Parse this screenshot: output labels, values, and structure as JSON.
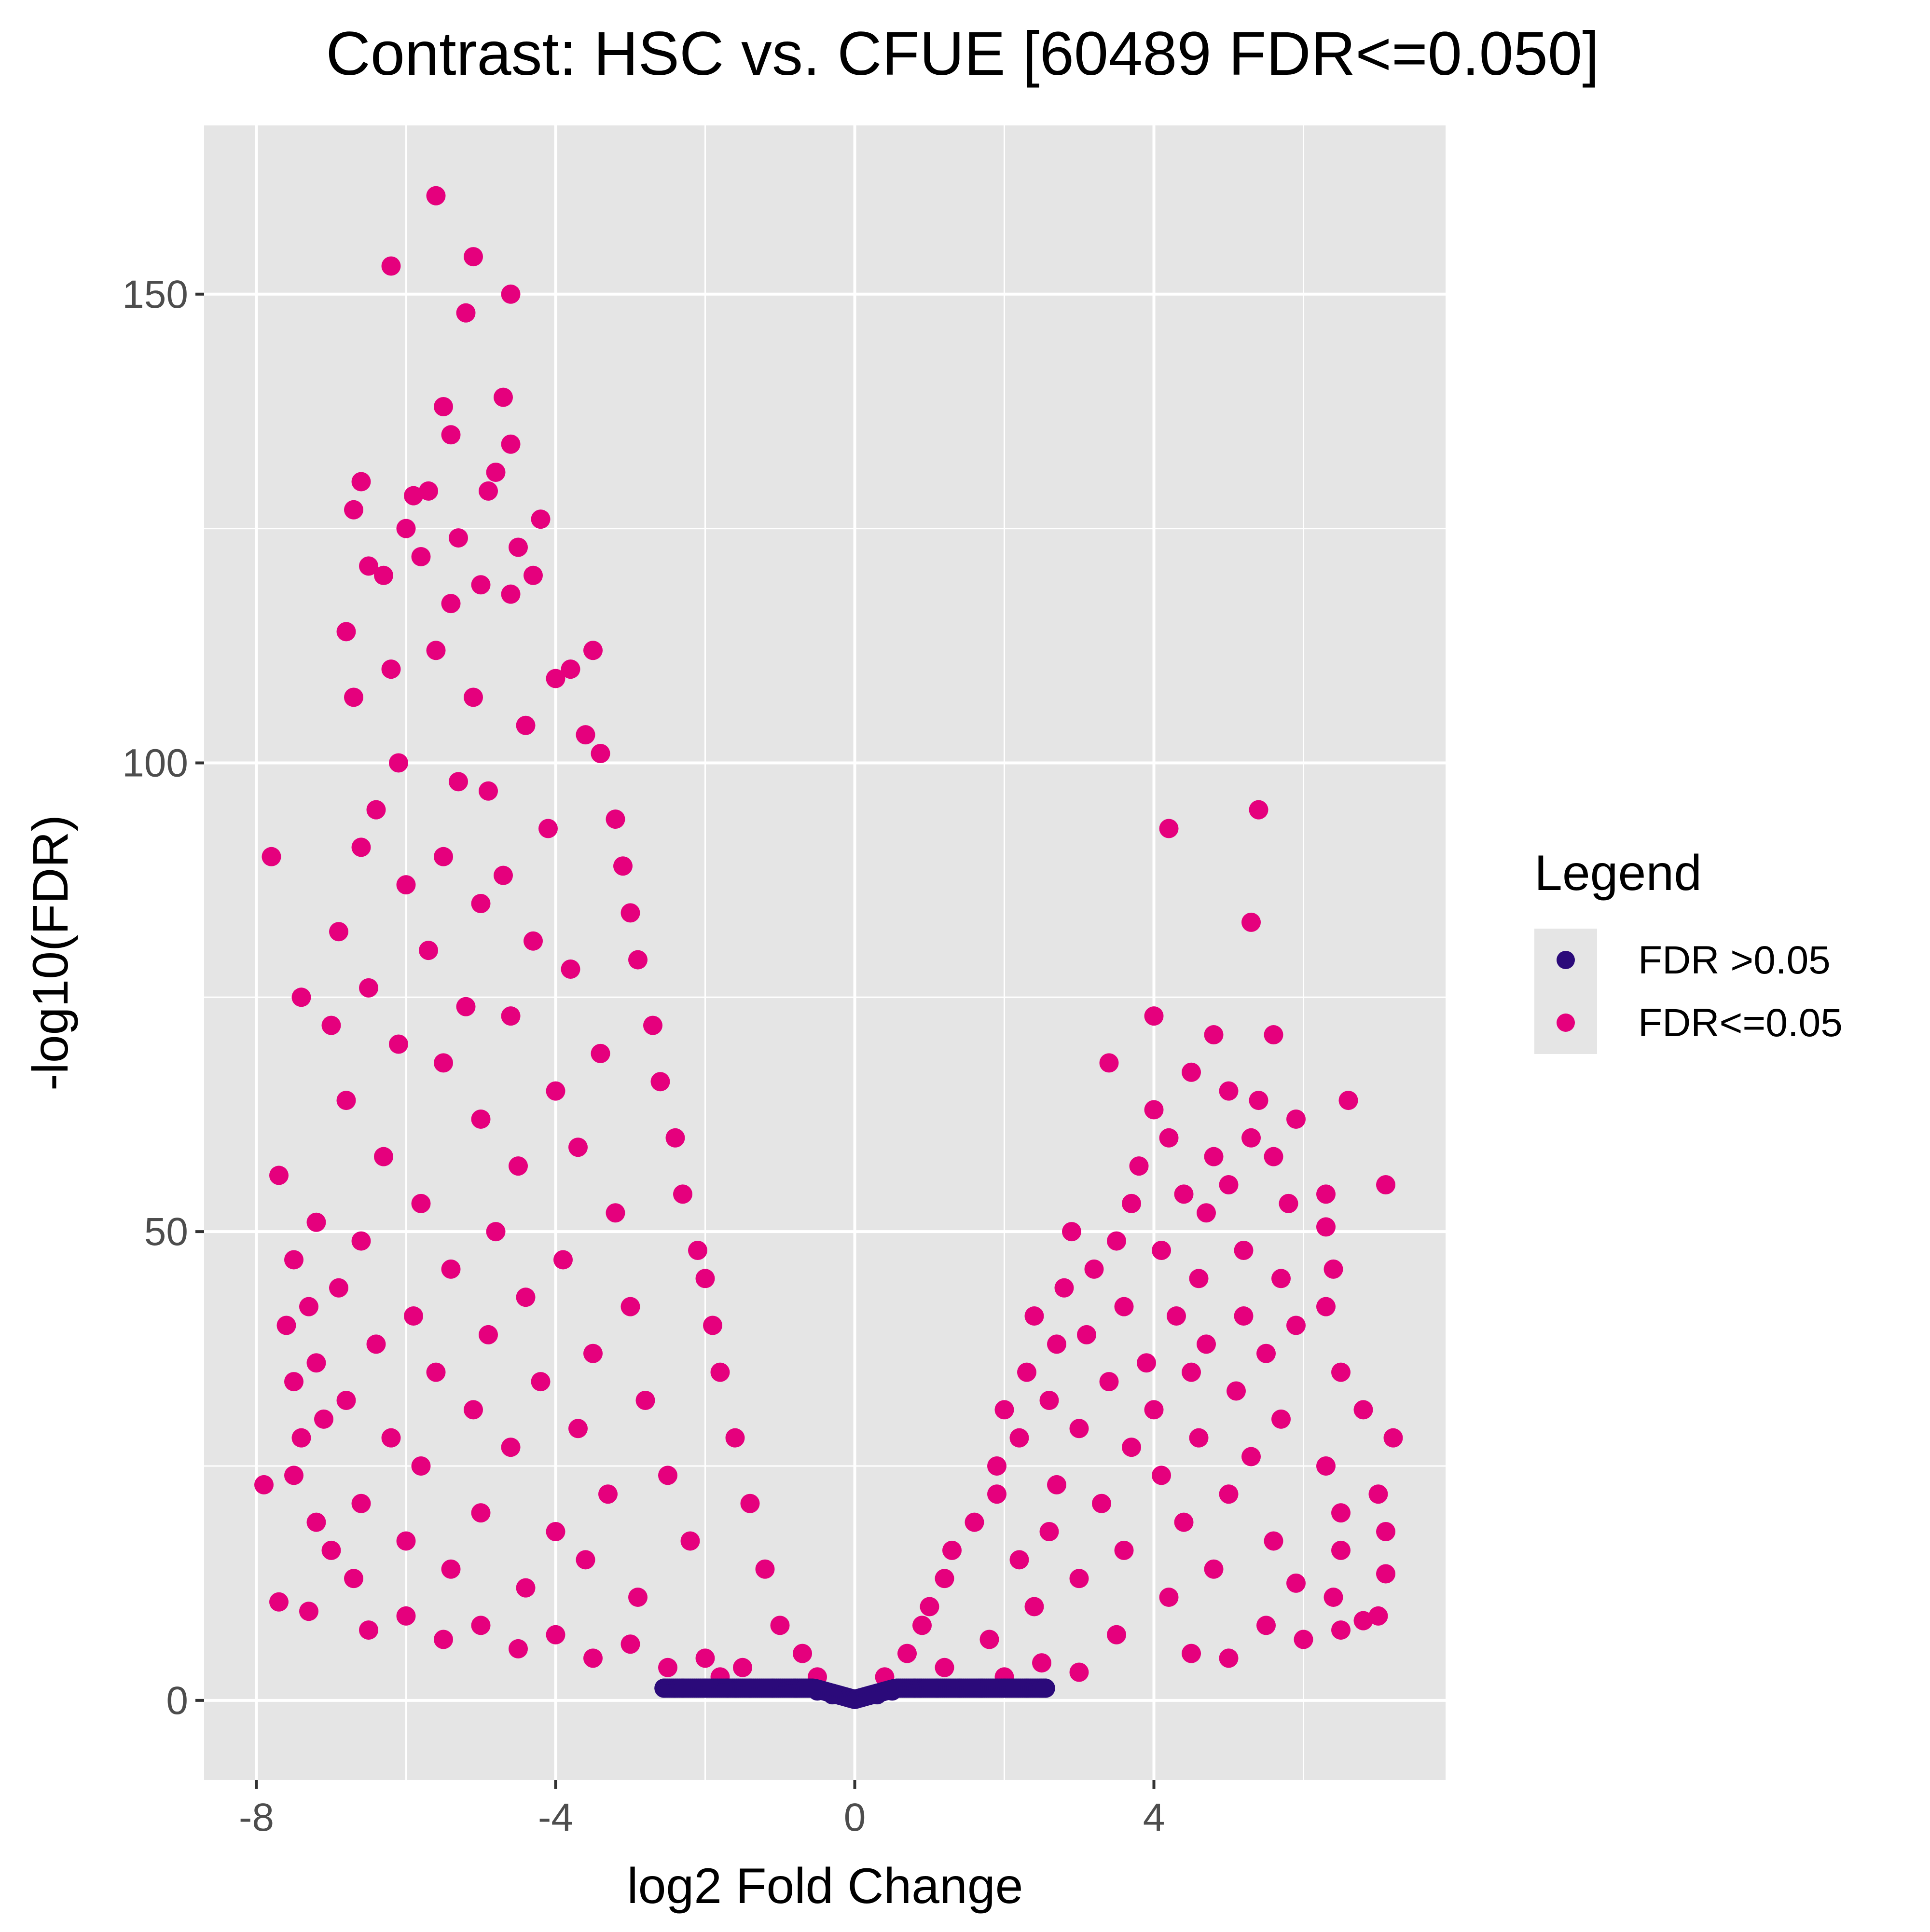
{
  "chart_data": {
    "type": "scatter",
    "title": "Contrast: HSC vs. CFUE  [60489 FDR<=0.050]",
    "xlabel": "log2 Fold Change",
    "ylabel": "-log10(FDR)",
    "xlim": [
      -8.7,
      7.9
    ],
    "ylim": [
      -8.5,
      168
    ],
    "x_ticks": [
      -8,
      -4,
      0,
      4
    ],
    "x_tick_labels": [
      "-8",
      "-4",
      "0",
      "4"
    ],
    "y_ticks": [
      0,
      50,
      100,
      150
    ],
    "y_tick_labels": [
      "0",
      "50",
      "100",
      "150"
    ],
    "grid": true,
    "panel_background": "#e5e5e5",
    "legend": {
      "title": "Legend",
      "placement": "right",
      "entries": [
        {
          "label": "FDR >0.05",
          "color": "#2b0a7a"
        },
        {
          "label": "FDR<=0.05",
          "color": "#e5007d"
        }
      ]
    },
    "series": [
      {
        "name": "FDR >0.05",
        "color": "#2b0a7a",
        "points": [
          [
            -2.55,
            1.3
          ],
          [
            -2.3,
            1.3
          ],
          [
            -2.0,
            1.3
          ],
          [
            -1.7,
            1.3
          ],
          [
            -1.4,
            1.3
          ],
          [
            -1.1,
            1.3
          ],
          [
            -0.8,
            1.3
          ],
          [
            -0.5,
            1.0
          ],
          [
            -0.3,
            0.6
          ],
          [
            0.0,
            0.1
          ],
          [
            0.3,
            0.6
          ],
          [
            0.5,
            1.0
          ],
          [
            0.8,
            1.3
          ],
          [
            1.1,
            1.3
          ],
          [
            1.4,
            1.3
          ],
          [
            1.7,
            1.3
          ],
          [
            2.0,
            1.3
          ],
          [
            2.3,
            1.3
          ],
          [
            2.55,
            1.3
          ]
        ]
      },
      {
        "name": "FDR<=0.05",
        "color": "#e5007d",
        "points": [
          [
            -5.6,
            160.5
          ],
          [
            -6.2,
            153
          ],
          [
            -5.1,
            154
          ],
          [
            -4.6,
            150
          ],
          [
            -5.2,
            148
          ],
          [
            -5.5,
            138
          ],
          [
            -4.7,
            139
          ],
          [
            -5.4,
            135
          ],
          [
            -4.6,
            134
          ],
          [
            -4.8,
            131
          ],
          [
            -6.6,
            130
          ],
          [
            -5.7,
            129
          ],
          [
            -6.7,
            127
          ],
          [
            -5.9,
            128.5
          ],
          [
            -4.9,
            129
          ],
          [
            -4.2,
            126
          ],
          [
            -6.0,
            125
          ],
          [
            -4.5,
            123
          ],
          [
            -5.3,
            124
          ],
          [
            -5.8,
            122
          ],
          [
            -6.5,
            121
          ],
          [
            -4.3,
            120
          ],
          [
            -5.0,
            119
          ],
          [
            -6.3,
            120
          ],
          [
            -5.4,
            117
          ],
          [
            -4.6,
            118
          ],
          [
            -3.5,
            112
          ],
          [
            -6.8,
            114
          ],
          [
            -5.6,
            112
          ],
          [
            -6.2,
            110
          ],
          [
            -4.0,
            109
          ],
          [
            -3.8,
            110
          ],
          [
            -5.1,
            107
          ],
          [
            -6.7,
            107
          ],
          [
            -4.4,
            104
          ],
          [
            -3.6,
            103
          ],
          [
            -3.4,
            101
          ],
          [
            -6.1,
            100
          ],
          [
            -5.3,
            98
          ],
          [
            -4.9,
            97
          ],
          [
            -6.4,
            95
          ],
          [
            -3.2,
            94
          ],
          [
            -4.1,
            93
          ],
          [
            -7.8,
            90
          ],
          [
            -6.6,
            91
          ],
          [
            -5.5,
            90
          ],
          [
            -3.1,
            89
          ],
          [
            -4.7,
            88
          ],
          [
            -6.0,
            87
          ],
          [
            -5.0,
            85
          ],
          [
            -3.0,
            84
          ],
          [
            -6.9,
            82
          ],
          [
            -4.3,
            81
          ],
          [
            -5.7,
            80
          ],
          [
            -2.9,
            79
          ],
          [
            -3.8,
            78
          ],
          [
            -7.4,
            75
          ],
          [
            -6.5,
            76
          ],
          [
            -5.2,
            74
          ],
          [
            -2.7,
            72
          ],
          [
            -4.6,
            73
          ],
          [
            -7.0,
            72
          ],
          [
            -6.1,
            70
          ],
          [
            -3.4,
            69
          ],
          [
            -5.5,
            68
          ],
          [
            -2.6,
            66
          ],
          [
            -4.0,
            65
          ],
          [
            -6.8,
            64
          ],
          [
            -5.0,
            62
          ],
          [
            -2.4,
            60
          ],
          [
            -3.7,
            59
          ],
          [
            -6.3,
            58
          ],
          [
            -4.5,
            57
          ],
          [
            -7.7,
            56
          ],
          [
            -2.3,
            54
          ],
          [
            -5.8,
            53
          ],
          [
            -3.2,
            52
          ],
          [
            -7.2,
            51
          ],
          [
            -4.8,
            50
          ],
          [
            -6.6,
            49
          ],
          [
            -2.1,
            48
          ],
          [
            -7.5,
            47
          ],
          [
            -3.9,
            47
          ],
          [
            -5.4,
            46
          ],
          [
            -2.0,
            45
          ],
          [
            -6.9,
            44
          ],
          [
            -4.4,
            43
          ],
          [
            -7.3,
            42
          ],
          [
            -3.0,
            42
          ],
          [
            -5.9,
            41
          ],
          [
            -7.6,
            40
          ],
          [
            -1.9,
            40
          ],
          [
            -4.9,
            39
          ],
          [
            -6.4,
            38
          ],
          [
            -3.5,
            37
          ],
          [
            -7.2,
            36
          ],
          [
            -5.6,
            35
          ],
          [
            -1.8,
            35
          ],
          [
            -7.5,
            34
          ],
          [
            -4.2,
            34
          ],
          [
            -6.8,
            32
          ],
          [
            -2.8,
            32
          ],
          [
            -5.1,
            31
          ],
          [
            -7.1,
            30
          ],
          [
            -3.7,
            29
          ],
          [
            -6.2,
            28
          ],
          [
            -1.6,
            28
          ],
          [
            -7.4,
            28
          ],
          [
            -4.6,
            27
          ],
          [
            -5.8,
            25
          ],
          [
            -7.5,
            24
          ],
          [
            -2.5,
            24
          ],
          [
            -7.9,
            23
          ],
          [
            -3.3,
            22
          ],
          [
            -6.6,
            21
          ],
          [
            -1.4,
            21
          ],
          [
            -5.0,
            20
          ],
          [
            -7.2,
            19
          ],
          [
            -4.0,
            18
          ],
          [
            -6.0,
            17
          ],
          [
            -2.2,
            17
          ],
          [
            -7.0,
            16
          ],
          [
            -3.6,
            15
          ],
          [
            -5.4,
            14
          ],
          [
            -1.2,
            14
          ],
          [
            -6.7,
            13
          ],
          [
            -4.4,
            12
          ],
          [
            -7.7,
            10.5
          ],
          [
            -2.9,
            11
          ],
          [
            -7.3,
            9.5
          ],
          [
            -6.0,
            9
          ],
          [
            -5.0,
            8
          ],
          [
            -4.0,
            7
          ],
          [
            -3.0,
            6
          ],
          [
            -1.0,
            8
          ],
          [
            -0.7,
            5
          ],
          [
            -2.0,
            4.5
          ],
          [
            -1.5,
            3.5
          ],
          [
            -0.5,
            2.5
          ],
          [
            -6.5,
            7.5
          ],
          [
            -5.5,
            6.5
          ],
          [
            -4.5,
            5.5
          ],
          [
            -3.5,
            4.5
          ],
          [
            -2.5,
            3.5
          ],
          [
            -1.8,
            2.5
          ],
          [
            4.2,
            93
          ],
          [
            5.4,
            95
          ],
          [
            5.3,
            83
          ],
          [
            4.0,
            73
          ],
          [
            4.8,
            71
          ],
          [
            5.6,
            71
          ],
          [
            3.4,
            68
          ],
          [
            4.5,
            67
          ],
          [
            5.0,
            65
          ],
          [
            5.4,
            64
          ],
          [
            6.6,
            64
          ],
          [
            4.0,
            63
          ],
          [
            5.9,
            62
          ],
          [
            4.2,
            60
          ],
          [
            5.3,
            60
          ],
          [
            4.8,
            58
          ],
          [
            5.6,
            58
          ],
          [
            3.8,
            57
          ],
          [
            7.1,
            55
          ],
          [
            5.0,
            55
          ],
          [
            6.3,
            54
          ],
          [
            4.4,
            54
          ],
          [
            3.7,
            53
          ],
          [
            5.8,
            53
          ],
          [
            4.7,
            52
          ],
          [
            6.3,
            50.5
          ],
          [
            2.9,
            50
          ],
          [
            3.5,
            49
          ],
          [
            4.1,
            48
          ],
          [
            5.2,
            48
          ],
          [
            6.4,
            46
          ],
          [
            3.2,
            46
          ],
          [
            4.6,
            45
          ],
          [
            5.7,
            45
          ],
          [
            2.8,
            44
          ],
          [
            6.3,
            42
          ],
          [
            3.6,
            42
          ],
          [
            4.3,
            41
          ],
          [
            5.2,
            41
          ],
          [
            2.4,
            41
          ],
          [
            5.9,
            40
          ],
          [
            3.1,
            39
          ],
          [
            4.7,
            38
          ],
          [
            2.7,
            38
          ],
          [
            5.5,
            37
          ],
          [
            3.9,
            36
          ],
          [
            2.3,
            35
          ],
          [
            4.5,
            35
          ],
          [
            6.5,
            35
          ],
          [
            3.4,
            34
          ],
          [
            5.1,
            33
          ],
          [
            2.6,
            32
          ],
          [
            2.0,
            31
          ],
          [
            4.0,
            31
          ],
          [
            6.8,
            31
          ],
          [
            5.7,
            30
          ],
          [
            3.0,
            29
          ],
          [
            2.2,
            28
          ],
          [
            4.6,
            28
          ],
          [
            7.2,
            28
          ],
          [
            3.7,
            27
          ],
          [
            5.3,
            26
          ],
          [
            1.9,
            25
          ],
          [
            6.3,
            25
          ],
          [
            4.1,
            24
          ],
          [
            2.7,
            23
          ],
          [
            1.9,
            22
          ],
          [
            5.0,
            22
          ],
          [
            7.0,
            22
          ],
          [
            3.3,
            21
          ],
          [
            6.5,
            20
          ],
          [
            1.6,
            19
          ],
          [
            4.4,
            19
          ],
          [
            2.6,
            18
          ],
          [
            7.1,
            18
          ],
          [
            5.6,
            17
          ],
          [
            1.3,
            16
          ],
          [
            3.6,
            16
          ],
          [
            6.5,
            16
          ],
          [
            2.2,
            15
          ],
          [
            4.8,
            14
          ],
          [
            7.1,
            13.5
          ],
          [
            1.2,
            13
          ],
          [
            3.0,
            13
          ],
          [
            5.9,
            12.5
          ],
          [
            6.4,
            11
          ],
          [
            1.0,
            10
          ],
          [
            4.2,
            11
          ],
          [
            2.4,
            10
          ],
          [
            7.0,
            9
          ],
          [
            6.8,
            8.5
          ],
          [
            0.9,
            8
          ],
          [
            5.5,
            8
          ],
          [
            3.5,
            7
          ],
          [
            1.8,
            6.5
          ],
          [
            0.7,
            5
          ],
          [
            6.0,
            6.5
          ],
          [
            4.5,
            5
          ],
          [
            2.5,
            4
          ],
          [
            1.2,
            3.5
          ],
          [
            0.4,
            2.5
          ],
          [
            5.0,
            4.5
          ],
          [
            3.0,
            3
          ],
          [
            2.0,
            2.5
          ],
          [
            6.5,
            7.5
          ]
        ]
      }
    ]
  }
}
